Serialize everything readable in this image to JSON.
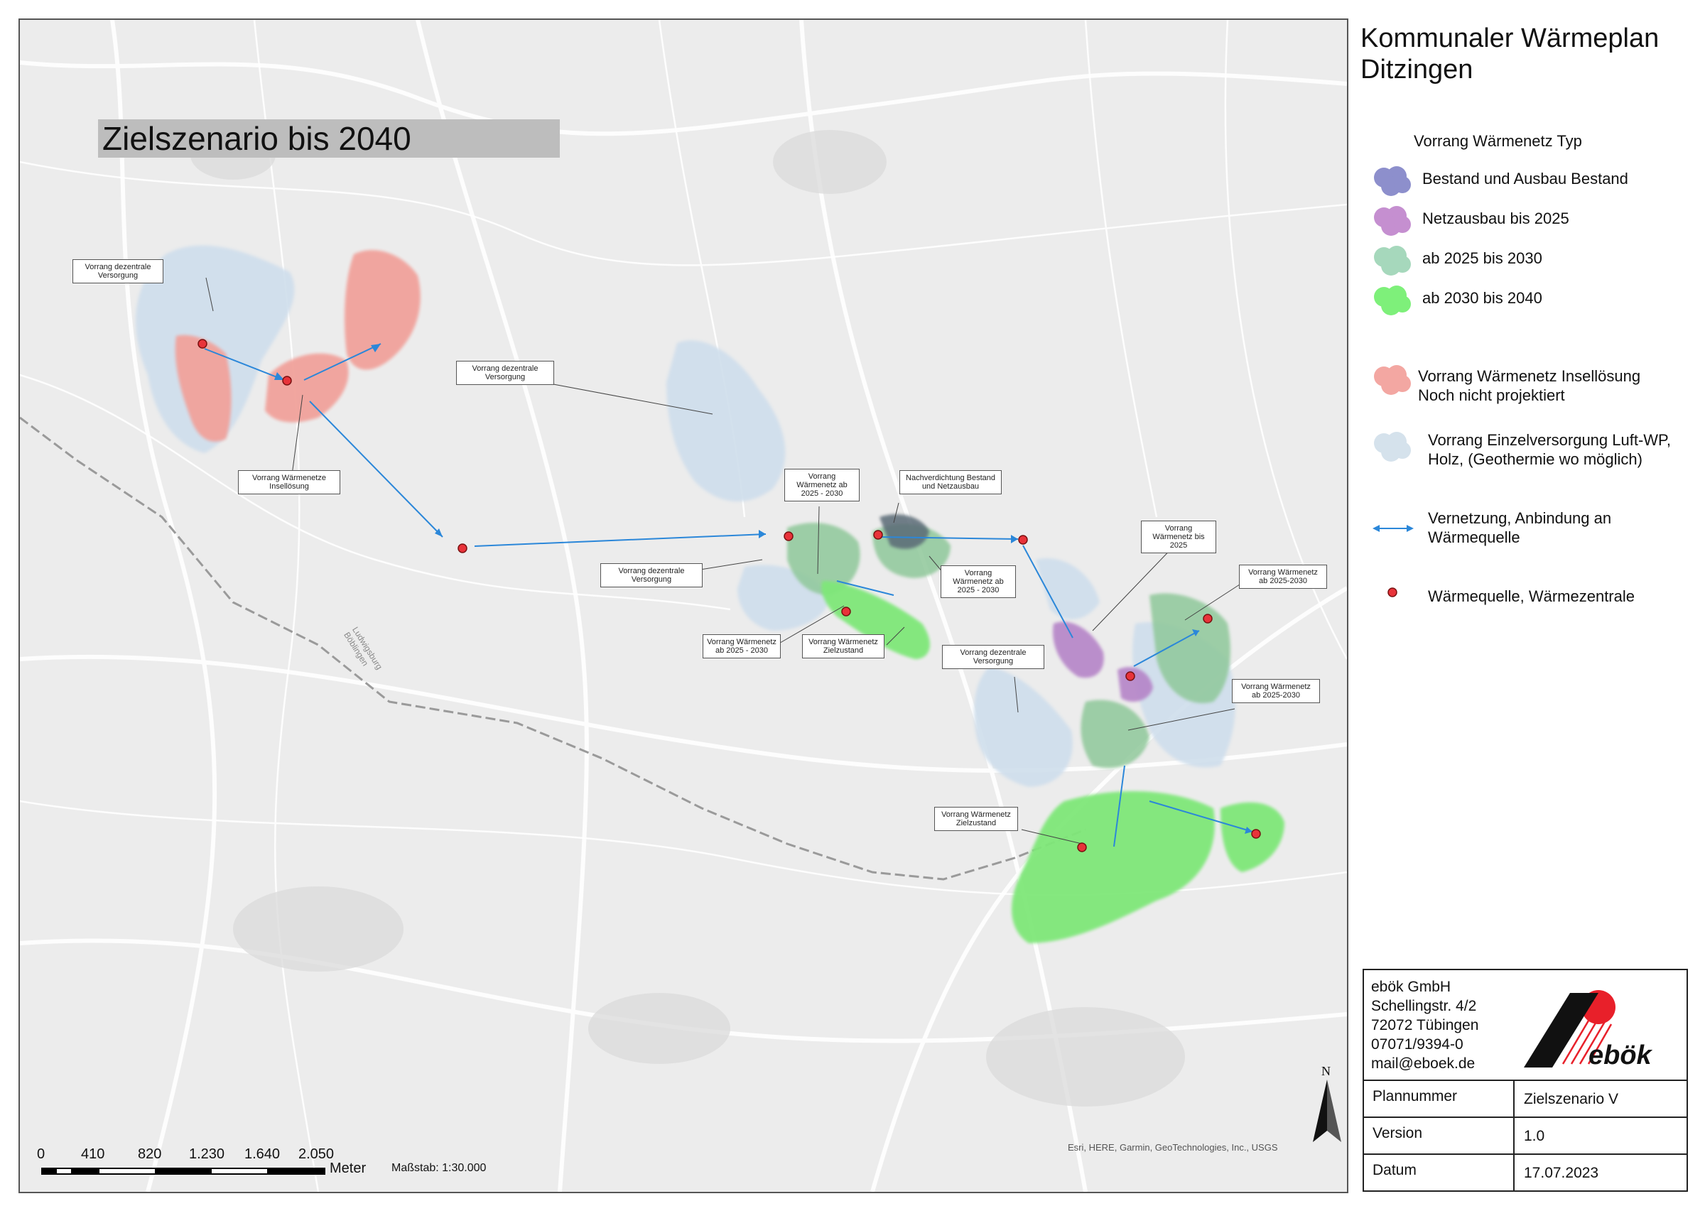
{
  "map": {
    "scenario_title": "Zielszenario bis 2040",
    "attribution": "Esri, HERE, Garmin, GeoTechnologies, Inc., USGS",
    "road_label": "Ludwigsburg Böblingen",
    "callouts": [
      {
        "id": "c1",
        "text": "Vorrang dezentrale Versorgung"
      },
      {
        "id": "c2",
        "text": "Vorrang dezentrale Versorgung"
      },
      {
        "id": "c3",
        "text": "Vorrang Wärmenetze Insellösung"
      },
      {
        "id": "c4",
        "text": "Vorrang Wärmenetz ab 2025 - 2030"
      },
      {
        "id": "c5",
        "text": "Nachverdichtung Bestand und Netzausbau"
      },
      {
        "id": "c6",
        "text": "Vorrang dezentrale Versorgung"
      },
      {
        "id": "c7",
        "text": "Vorrang Wärmenetz ab 2025 - 2030"
      },
      {
        "id": "c8",
        "text": "Vorrang Wärmenetz ab 2025 - 2030"
      },
      {
        "id": "c9",
        "text": "Vorrang Wärmenetz Zielzustand"
      },
      {
        "id": "c10",
        "text": "Vorrang Wärmenetz bis 2025"
      },
      {
        "id": "c11",
        "text": "Vorrang Wärmenetz ab 2025-2030"
      },
      {
        "id": "c12",
        "text": "Vorrang dezentrale Versorgung"
      },
      {
        "id": "c13",
        "text": "Vorrang Wärmenetz ab 2025-2030"
      },
      {
        "id": "c14",
        "text": "Vorrang Wärmenetz Zielzustand"
      }
    ]
  },
  "scale": {
    "ticks": [
      "0",
      "410",
      "820",
      "1.230",
      "1.640",
      "2.050"
    ],
    "unit": "Meter",
    "ratio": "Maßstab: 1:30.000"
  },
  "north_label": "N",
  "legend": {
    "title_line1": "Kommunaler Wärmeplan",
    "title_line2": "Ditzingen",
    "heading": "Vorrang Wärmenetz Typ",
    "items": [
      {
        "label": "Bestand und Ausbau Bestand",
        "color": "#8d8fcc"
      },
      {
        "label": "Netzausbau bis 2025",
        "color": "#c58fd0"
      },
      {
        "label": "ab 2025 bis 2030",
        "color": "#a6d8bc"
      },
      {
        "label": "ab 2030 bis 2040",
        "color": "#7ef07a"
      },
      {
        "label": "Vorrang Wärmenetz Insellösung Noch nicht projektiert",
        "color": "#f3a7a2"
      },
      {
        "label": "Vorrang Einzelversorgung Luft-WP, Holz, (Geothermie wo möglich)",
        "color": "#d5e2ec"
      },
      {
        "label": "Vernetzung, Anbindung an Wärmequelle",
        "color": "#2b87d9"
      },
      {
        "label": "Wärmequelle, Wärmezentrale",
        "color": "#e8333a"
      }
    ]
  },
  "company": {
    "name": "ebök GmbH",
    "street": "Schellingstr. 4/2",
    "city": "72072 Tübingen",
    "phone": "07071/9394-0",
    "email": "mail@eboek.de",
    "logo_text": "ebök"
  },
  "info": {
    "plan_label": "Plannummer",
    "plan_value": "Zielszenario V",
    "version_label": "Version",
    "version_value": "1.0",
    "date_label": "Datum",
    "date_value": "17.07.2023"
  }
}
